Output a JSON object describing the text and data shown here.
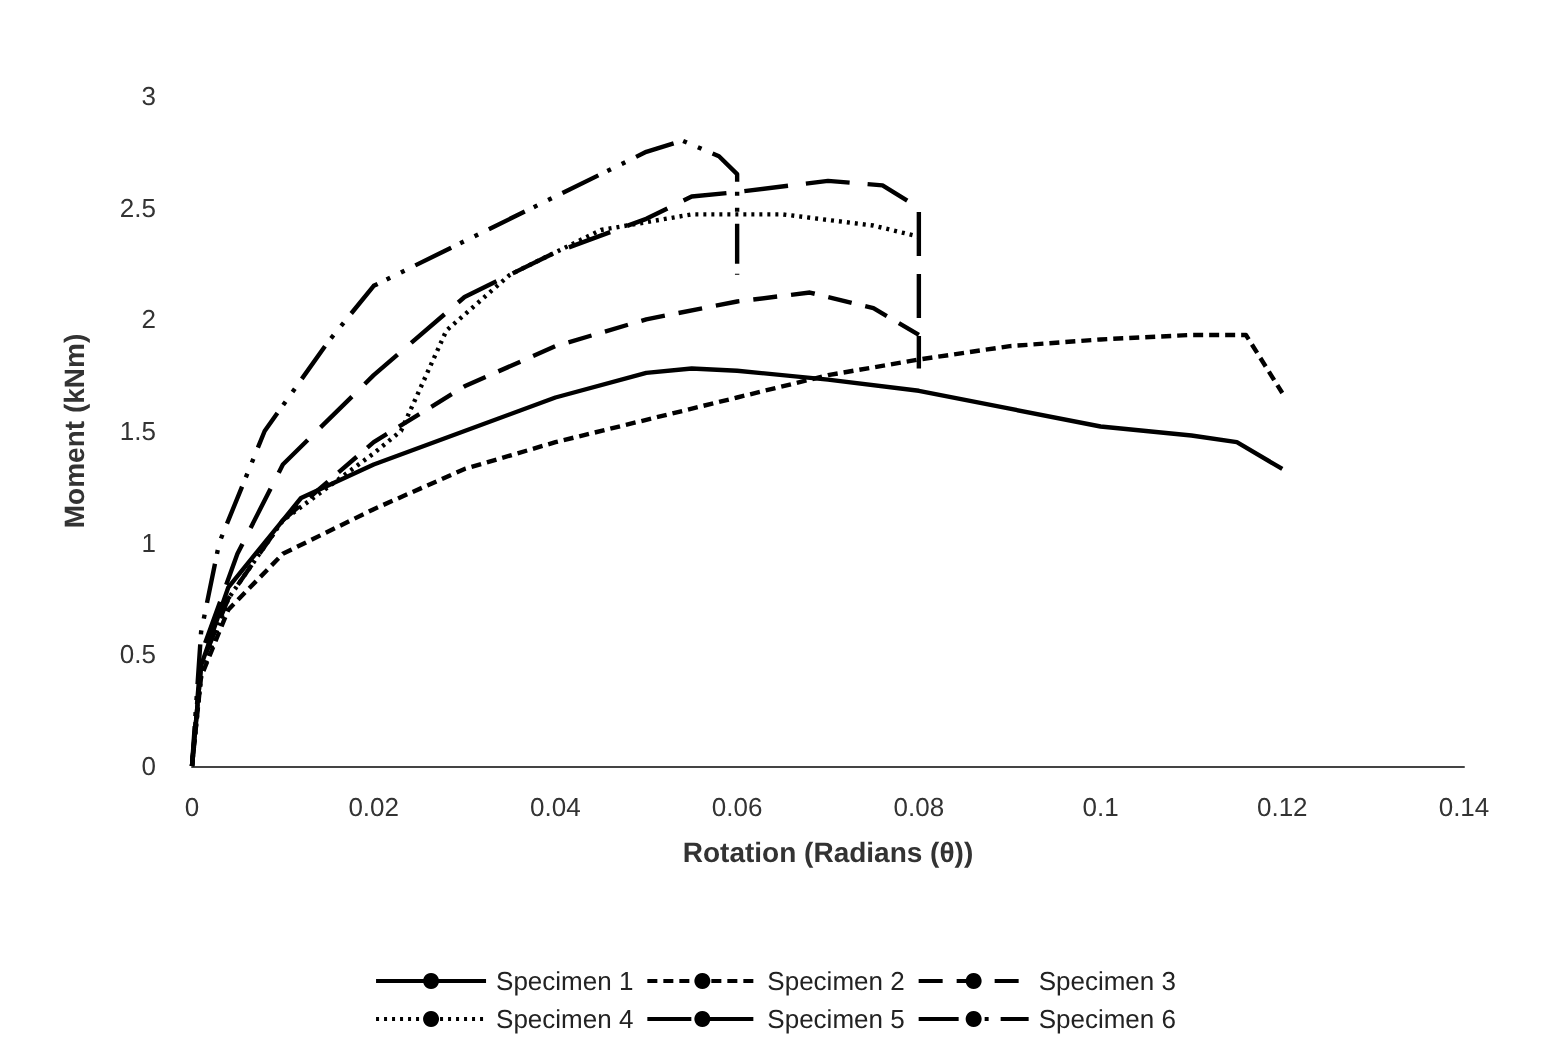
{
  "chart_data": {
    "type": "line",
    "xlabel": "Rotation (Radians (θ))",
    "ylabel": "Moment (kNm)",
    "xlim": [
      0,
      0.14
    ],
    "xticks": [
      0,
      0.02,
      0.04,
      0.06,
      0.08,
      0.1,
      0.12,
      0.14
    ],
    "ylim": [
      0,
      3
    ],
    "yticks": [
      0,
      0.5,
      1,
      1.5,
      2,
      2.5,
      3
    ],
    "grid": false,
    "legend": "bottom",
    "marker": "none",
    "series": [
      {
        "name": "Specimen 1",
        "color": "#000000",
        "line_style": "solid",
        "x": [
          0,
          0.001,
          0.004,
          0.008,
          0.012,
          0.02,
          0.03,
          0.04,
          0.05,
          0.055,
          0.06,
          0.07,
          0.08,
          0.09,
          0.1,
          0.11,
          0.115,
          0.12
        ],
        "values": [
          0,
          0.45,
          0.8,
          1.0,
          1.2,
          1.35,
          1.5,
          1.65,
          1.76,
          1.78,
          1.77,
          1.73,
          1.68,
          1.6,
          1.52,
          1.48,
          1.45,
          1.33
        ]
      },
      {
        "name": "Specimen 2",
        "color": "#000000",
        "line_style": "dashed",
        "x": [
          0,
          0.001,
          0.004,
          0.01,
          0.02,
          0.03,
          0.04,
          0.05,
          0.06,
          0.07,
          0.08,
          0.09,
          0.1,
          0.11,
          0.116,
          0.12
        ],
        "values": [
          0,
          0.4,
          0.7,
          0.95,
          1.15,
          1.33,
          1.45,
          1.55,
          1.65,
          1.75,
          1.82,
          1.88,
          1.91,
          1.93,
          1.93,
          1.67
        ]
      },
      {
        "name": "Specimen 3",
        "color": "#000000",
        "line_style": "dashed",
        "x": [
          0,
          0.001,
          0.004,
          0.01,
          0.02,
          0.03,
          0.04,
          0.05,
          0.06,
          0.068,
          0.075,
          0.08
        ],
        "values": [
          0,
          0.45,
          0.75,
          1.1,
          1.45,
          1.7,
          1.88,
          2.0,
          2.08,
          2.12,
          2.05,
          1.93
        ]
      },
      {
        "name": "Specimen 4",
        "color": "#000000",
        "line_style": "dotted",
        "x": [
          0,
          0.001,
          0.004,
          0.01,
          0.02,
          0.023,
          0.028,
          0.035,
          0.045,
          0.055,
          0.065,
          0.075,
          0.08
        ],
        "values": [
          0,
          0.4,
          0.75,
          1.1,
          1.4,
          1.5,
          1.95,
          2.2,
          2.4,
          2.47,
          2.47,
          2.42,
          2.37
        ]
      },
      {
        "name": "Specimen 5",
        "color": "#000000",
        "line_style": "dashed",
        "x": [
          0,
          0.001,
          0.005,
          0.01,
          0.02,
          0.03,
          0.04,
          0.05,
          0.055,
          0.06,
          0.07,
          0.076,
          0.08,
          0.08
        ],
        "values": [
          0,
          0.5,
          0.95,
          1.35,
          1.75,
          2.1,
          2.3,
          2.45,
          2.55,
          2.57,
          2.62,
          2.6,
          2.5,
          1.78
        ]
      },
      {
        "name": "Specimen 6",
        "color": "#000000",
        "line_style": "dashed",
        "x": [
          0,
          0.001,
          0.003,
          0.008,
          0.015,
          0.02,
          0.03,
          0.04,
          0.05,
          0.054,
          0.058,
          0.06,
          0.06
        ],
        "values": [
          0,
          0.6,
          1.0,
          1.5,
          1.9,
          2.15,
          2.35,
          2.55,
          2.75,
          2.8,
          2.73,
          2.65,
          2.2
        ]
      }
    ]
  }
}
